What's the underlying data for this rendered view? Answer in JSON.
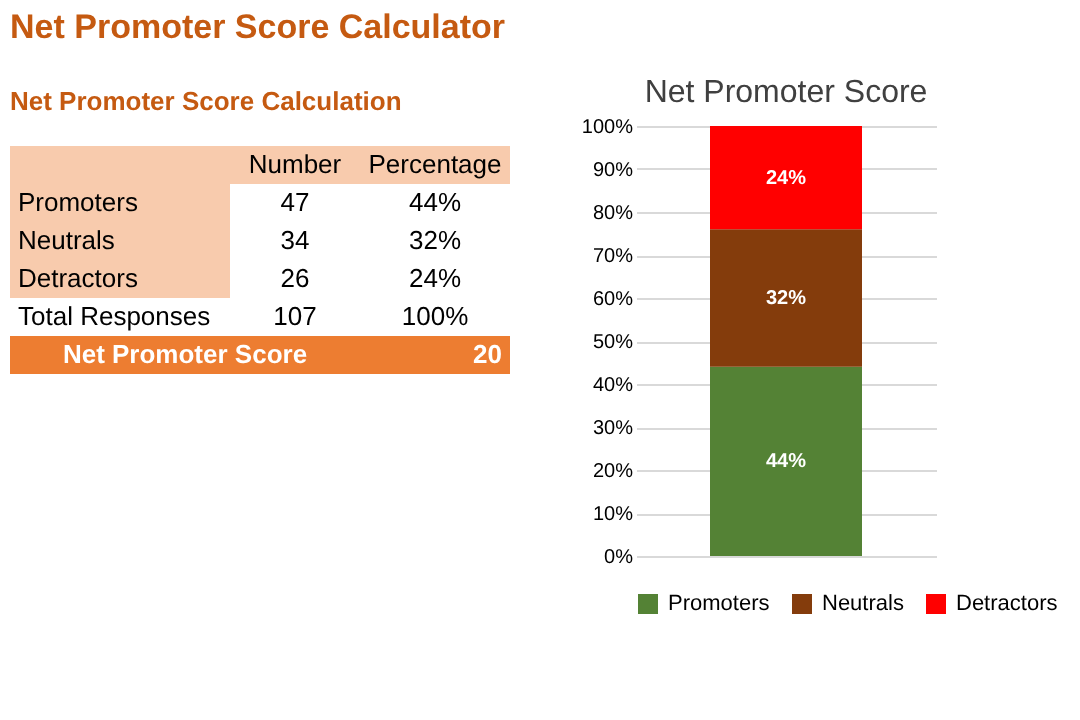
{
  "chart_data": [
    {
      "type": "other",
      "title": "Net Promoter Score Calculator",
      "subtitle": "Net Promoter Score Calculation",
      "annotations": [
        "Number",
        "Percentage",
        "Promoters",
        "47",
        "44%",
        "Neutrals",
        "34",
        "32%",
        "Detractors",
        "26",
        "24%",
        "Total Responses",
        "107",
        "100%",
        "Net Promoter Score",
        "20"
      ]
    },
    {
      "type": "bar",
      "title": "Net Promoter Score",
      "stacked": true,
      "categories": [
        null
      ],
      "series": [
        {
          "name": "Promoters",
          "color": "#548235",
          "values": [
            44
          ],
          "value_labels": [
            "44%"
          ]
        },
        {
          "name": "Neutrals",
          "color": "#843c0c",
          "values": [
            32
          ],
          "value_labels": [
            "32%"
          ]
        },
        {
          "name": "Detractors",
          "color": "#ff0000",
          "values": [
            24
          ],
          "value_labels": [
            "24%"
          ]
        }
      ],
      "ylim": [
        0,
        100
      ],
      "yticks": [
        {
          "value": 0,
          "label": "0%"
        },
        {
          "value": 10,
          "label": "10%"
        },
        {
          "value": 20,
          "label": "20%"
        },
        {
          "value": 30,
          "label": "30%"
        },
        {
          "value": 40,
          "label": "40%"
        },
        {
          "value": 50,
          "label": "50%"
        },
        {
          "value": 60,
          "label": "60%"
        },
        {
          "value": 70,
          "label": "70%"
        },
        {
          "value": 80,
          "label": "80%"
        },
        {
          "value": 90,
          "label": "90%"
        },
        {
          "value": 100,
          "label": "100%"
        }
      ],
      "grid": "y",
      "legend": "bottom"
    }
  ]
}
